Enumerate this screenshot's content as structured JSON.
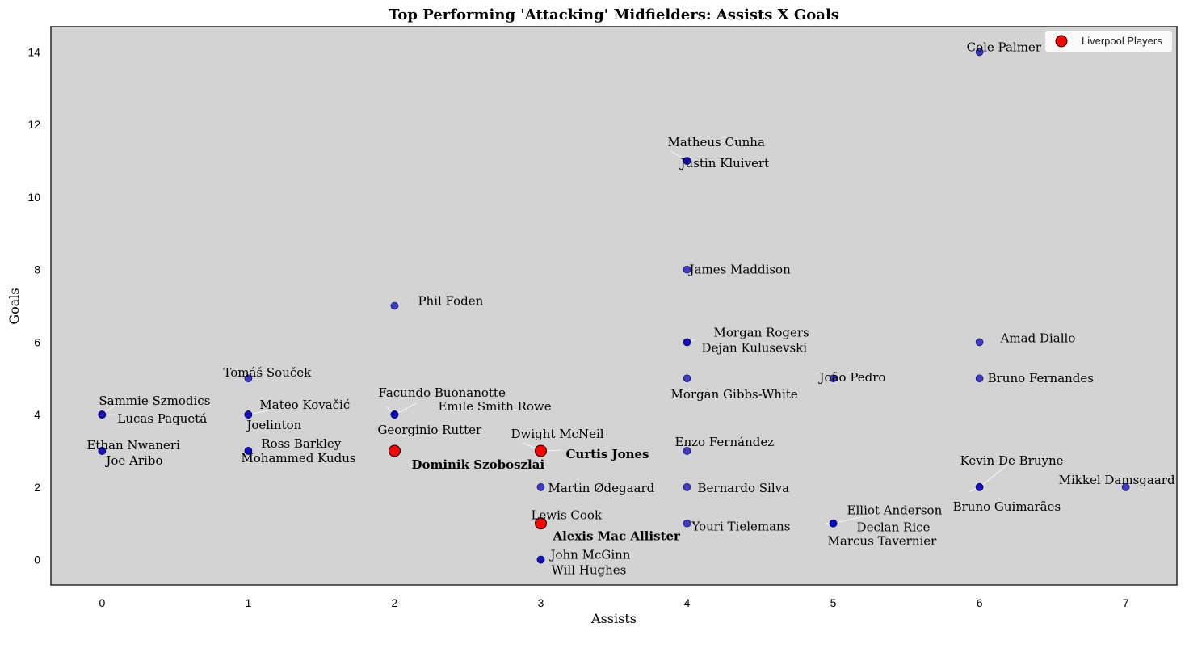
{
  "chart_data": {
    "type": "scatter",
    "title": "Top Performing 'Attacking' Midfielders: Assists X Goals",
    "xlabel": "Assists",
    "ylabel": "Goals",
    "xlim": [
      -0.35,
      7.35
    ],
    "ylim": [
      -0.7,
      14.7
    ],
    "xticks": [
      0,
      1,
      2,
      3,
      4,
      5,
      6,
      7
    ],
    "yticks": [
      0,
      2,
      4,
      6,
      8,
      10,
      12,
      14
    ],
    "grid": false,
    "legend": {
      "position": "top-right",
      "entries": [
        "Liverpool Players"
      ]
    },
    "colors": {
      "background": "#d3d3d3",
      "point": "#0000cc",
      "liverpool": "#ff0000",
      "liverpool_text": "#ff0000",
      "frame": "#333333"
    },
    "points": [
      {
        "name": "Cole Palmer",
        "assists": 6,
        "goals": 14,
        "liverpool": false
      },
      {
        "name": "Matheus Cunha",
        "assists": 4,
        "goals": 11,
        "liverpool": false
      },
      {
        "name": "Justin Kluivert",
        "assists": 4,
        "goals": 11,
        "liverpool": false
      },
      {
        "name": "James Maddison",
        "assists": 4,
        "goals": 8,
        "liverpool": false
      },
      {
        "name": "Phil Foden",
        "assists": 2,
        "goals": 7,
        "liverpool": false
      },
      {
        "name": "Morgan Rogers",
        "assists": 4,
        "goals": 6,
        "liverpool": false
      },
      {
        "name": "Dejan Kulusevski",
        "assists": 4,
        "goals": 6,
        "liverpool": false
      },
      {
        "name": "Amad Diallo",
        "assists": 6,
        "goals": 6,
        "liverpool": false
      },
      {
        "name": "Tomáš Souček",
        "assists": 1,
        "goals": 5,
        "liverpool": false
      },
      {
        "name": "João Pedro",
        "assists": 5,
        "goals": 5,
        "liverpool": false
      },
      {
        "name": "Bruno Fernandes",
        "assists": 6,
        "goals": 5,
        "liverpool": false
      },
      {
        "name": "Morgan Gibbs-White",
        "assists": 4,
        "goals": 5,
        "liverpool": false
      },
      {
        "name": "Sammie Szmodics",
        "assists": 0,
        "goals": 4,
        "liverpool": false
      },
      {
        "name": "Lucas Paquetá",
        "assists": 0,
        "goals": 4,
        "liverpool": false
      },
      {
        "name": "Mateo Kovačić",
        "assists": 1,
        "goals": 4,
        "liverpool": false
      },
      {
        "name": "Joelinton",
        "assists": 1,
        "goals": 4,
        "liverpool": false
      },
      {
        "name": "Facundo Buonanotte",
        "assists": 2,
        "goals": 4,
        "liverpool": false
      },
      {
        "name": "Emile Smith Rowe",
        "assists": 2,
        "goals": 4,
        "liverpool": false
      },
      {
        "name": "Georginio Rutter",
        "assists": 2,
        "goals": 4,
        "liverpool": false
      },
      {
        "name": "Ethan Nwaneri",
        "assists": 0,
        "goals": 3,
        "liverpool": false
      },
      {
        "name": "Joe Aribo",
        "assists": 0,
        "goals": 3,
        "liverpool": false
      },
      {
        "name": "Ross Barkley",
        "assists": 1,
        "goals": 3,
        "liverpool": false
      },
      {
        "name": "Mohammed Kudus",
        "assists": 1,
        "goals": 3,
        "liverpool": false
      },
      {
        "name": "Dominik Szoboszlai",
        "assists": 2,
        "goals": 3,
        "liverpool": true
      },
      {
        "name": "Dwight McNeil",
        "assists": 3,
        "goals": 3,
        "liverpool": false
      },
      {
        "name": "Curtis Jones",
        "assists": 3,
        "goals": 3,
        "liverpool": true
      },
      {
        "name": "Enzo Fernández",
        "assists": 4,
        "goals": 3,
        "liverpool": false
      },
      {
        "name": "Kevin De Bruyne",
        "assists": 6,
        "goals": 2,
        "liverpool": false
      },
      {
        "name": "Bruno Guimarães",
        "assists": 6,
        "goals": 2,
        "liverpool": false
      },
      {
        "name": "Mikkel Damsgaard",
        "assists": 7,
        "goals": 2,
        "liverpool": false
      },
      {
        "name": "Martin Ødegaard",
        "assists": 3,
        "goals": 2,
        "liverpool": false
      },
      {
        "name": "Bernardo Silva",
        "assists": 4,
        "goals": 2,
        "liverpool": false
      },
      {
        "name": "Lewis Cook",
        "assists": 3,
        "goals": 1,
        "liverpool": false
      },
      {
        "name": "Alexis Mac Allister",
        "assists": 3,
        "goals": 1,
        "liverpool": true
      },
      {
        "name": "Youri Tielemans",
        "assists": 4,
        "goals": 1,
        "liverpool": false
      },
      {
        "name": "Elliot Anderson",
        "assists": 5,
        "goals": 1,
        "liverpool": false
      },
      {
        "name": "Declan Rice",
        "assists": 5,
        "goals": 1,
        "liverpool": false
      },
      {
        "name": "Marcus Tavernier",
        "assists": 5,
        "goals": 1,
        "liverpool": false
      },
      {
        "name": "John McGinn",
        "assists": 3,
        "goals": 0,
        "liverpool": false
      },
      {
        "name": "Will Hughes",
        "assists": 3,
        "goals": 0,
        "liverpool": false
      }
    ]
  }
}
